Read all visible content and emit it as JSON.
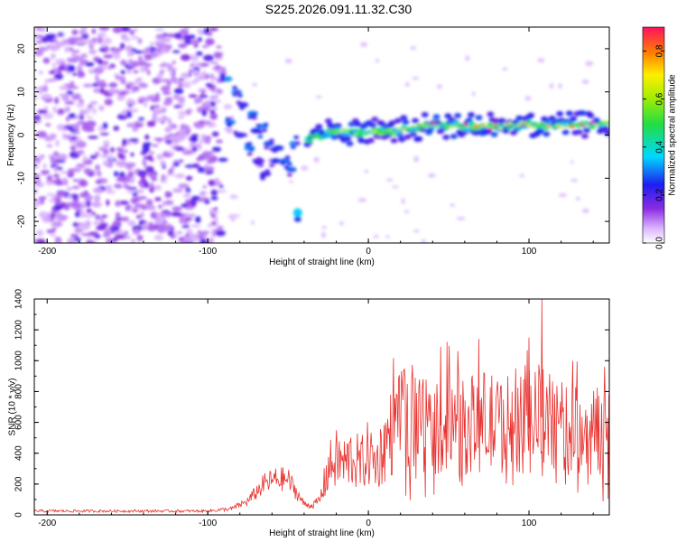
{
  "title": "S225.2026.091.11.32.C30",
  "chart_data": [
    {
      "type": "heatmap",
      "name": "spectrogram",
      "xlabel": "Height of straight line (km)",
      "ylabel": "Frequency (Hz)",
      "xlim": [
        -208,
        150
      ],
      "ylim": [
        -25,
        25
      ],
      "xticks": [
        -200,
        -100,
        0,
        100
      ],
      "yticks": [
        -20,
        -10,
        0,
        10,
        20
      ],
      "colorbar": {
        "label": "Normalized spectral amplitude",
        "range": [
          0,
          0.9
        ],
        "ticks": [
          0.0,
          0.2,
          0.4,
          0.6,
          0.8
        ]
      },
      "features": [
        {
          "label": "noise field",
          "x_range": [
            -208,
            -92
          ],
          "y_range": [
            -25,
            25
          ]
        },
        {
          "label": "main band",
          "x": [
            -38,
            -20,
            0,
            20,
            40,
            60,
            80,
            100,
            120,
            150
          ],
          "y": [
            -1,
            1,
            0.5,
            1,
            2.5,
            2,
            2,
            2.5,
            2,
            2.5
          ]
        },
        {
          "label": "descending streaks",
          "x": [
            -90,
            -75,
            -60,
            -50
          ],
          "y": [
            13,
            5,
            -7,
            -5
          ]
        },
        {
          "label": "isolated blob",
          "x": -44,
          "y": -18
        }
      ]
    },
    {
      "type": "line",
      "name": "snr",
      "xlabel": "Height of straight line (km)",
      "ylabel": "SNR (10 * v/v)",
      "xlim": [
        -208,
        150
      ],
      "ylim": [
        0,
        1400
      ],
      "xticks": [
        -200,
        -100,
        0,
        100
      ],
      "yticks": [
        0,
        200,
        400,
        600,
        800,
        1000,
        1200,
        1400
      ],
      "color": "#e8322f",
      "series": [
        {
          "name": "SNR envelope",
          "x": [
            -208,
            -150,
            -100,
            -85,
            -75,
            -65,
            -58,
            -50,
            -45,
            -40,
            -35,
            -30,
            -25,
            -20,
            -15,
            -10,
            -5,
            0,
            5,
            10,
            15,
            20,
            30,
            40,
            50,
            60,
            70,
            80,
            90,
            100,
            105,
            110,
            120,
            130,
            140,
            150
          ],
          "y": [
            25,
            25,
            25,
            40,
            90,
            200,
            230,
            230,
            150,
            70,
            60,
            100,
            300,
            360,
            330,
            380,
            320,
            400,
            330,
            450,
            550,
            600,
            650,
            560,
            600,
            560,
            620,
            580,
            600,
            560,
            650,
            620,
            560,
            540,
            540,
            560
          ]
        }
      ],
      "peaks": [
        {
          "x": 45,
          "y": 1090
        },
        {
          "x": 108,
          "y": 1400
        },
        {
          "x": 100,
          "y": 1150
        }
      ]
    }
  ]
}
